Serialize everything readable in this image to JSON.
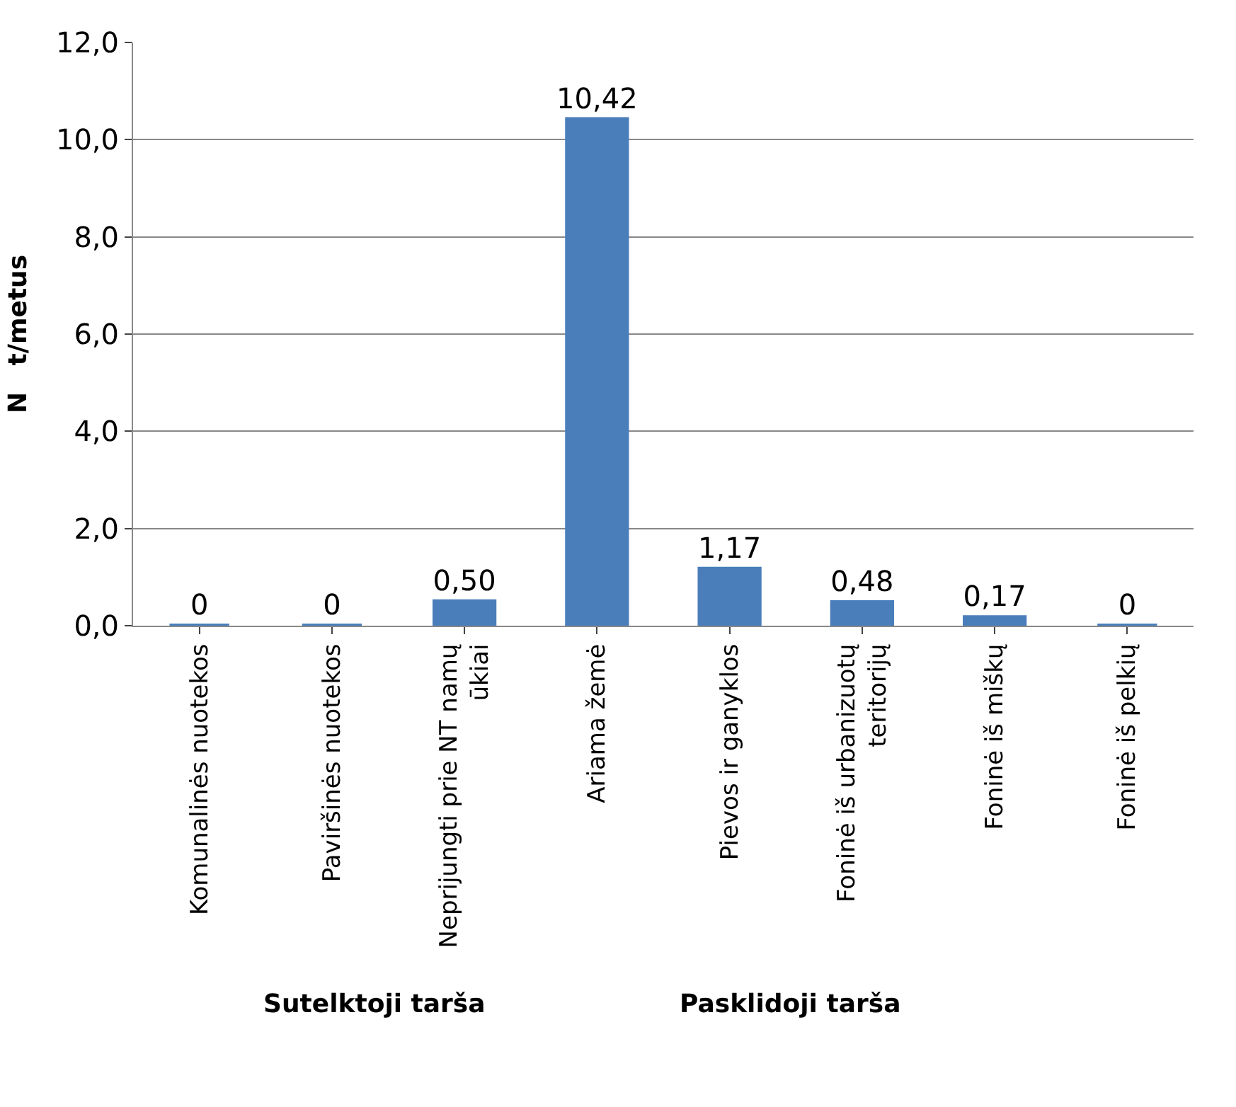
{
  "chart_data": {
    "type": "bar",
    "ylabel": "N   t/metus",
    "categories": [
      "Komunalinės nuotekos",
      "Paviršinės nuotekos",
      "Neprijungti prie NT namų\nūkiai",
      "Ariama žemė",
      "Pievos ir ganyklos",
      "Foninė iš urbanizuotų\nteritorijų",
      "Foninė iš miškų",
      "Foninė iš pelkių"
    ],
    "values": [
      0,
      0,
      0.5,
      10.42,
      1.17,
      0.48,
      0.17,
      0
    ],
    "value_labels": [
      "0",
      "0",
      "0,50",
      "10,42",
      "1,17",
      "0,48",
      "0,17",
      "0"
    ],
    "color": "#4a7ebb",
    "ylim": [
      0,
      12
    ],
    "yticks": [
      {
        "value": 0,
        "label": "0,0"
      },
      {
        "value": 2,
        "label": "2,0"
      },
      {
        "value": 4,
        "label": "4,0"
      },
      {
        "value": 6,
        "label": "6,0"
      },
      {
        "value": 8,
        "label": "8,0"
      },
      {
        "value": 10,
        "label": "10,0"
      },
      {
        "value": 12,
        "label": "12,0"
      }
    ],
    "grid": "y",
    "legend": false,
    "annotations": [
      "Sutelktoji tarša",
      "Pasklidoji tarša"
    ]
  }
}
